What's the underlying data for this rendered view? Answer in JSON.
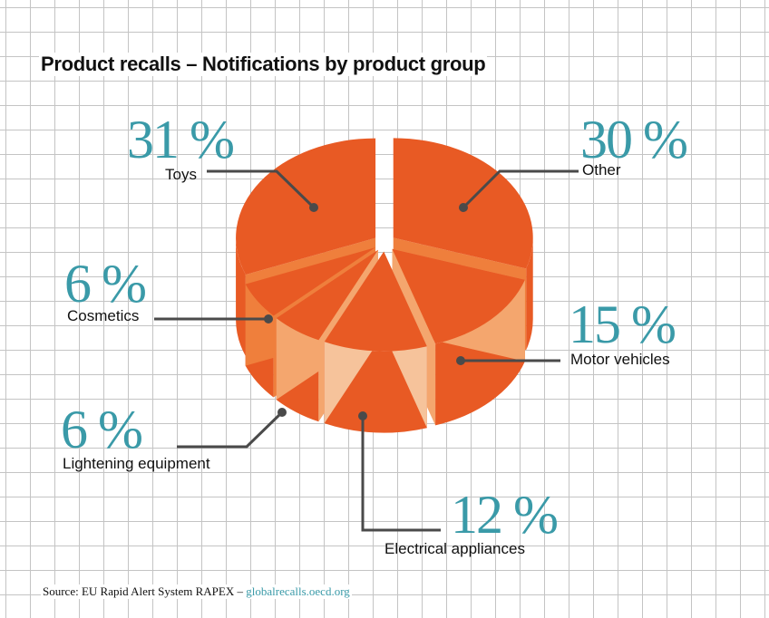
{
  "title": "Product recalls – Notifications by product group",
  "source": {
    "prefix": "Source: EU Rapid Alert System RAPEX – ",
    "link": "globalrecalls.oecd.org"
  },
  "colors": {
    "top": "#e85a24",
    "side_light": "#ef7f3c",
    "side_pale": "#f4a66e",
    "side_palest": "#f6c39b",
    "percent_text": "#3a9aa8",
    "leader": "#4a4a4a"
  },
  "chart_data": {
    "type": "pie",
    "title": "Product recalls – Notifications by product group",
    "unit": "%",
    "categories": [
      "Toys",
      "Other",
      "Motor vehicles",
      "Electrical appliances",
      "Lightening equipment",
      "Cosmetics"
    ],
    "values": [
      31,
      30,
      15,
      12,
      6,
      6
    ],
    "labels": [
      {
        "name": "Toys",
        "percent": "31 %"
      },
      {
        "name": "Other",
        "percent": "30 %"
      },
      {
        "name": "Motor vehicles",
        "percent": "15 %"
      },
      {
        "name": "Electrical appliances",
        "percent": "12 %"
      },
      {
        "name": "Lightening equipment",
        "percent": "6 %"
      },
      {
        "name": "Cosmetics",
        "percent": "6 %"
      }
    ],
    "style": "exploded 3D pie"
  }
}
